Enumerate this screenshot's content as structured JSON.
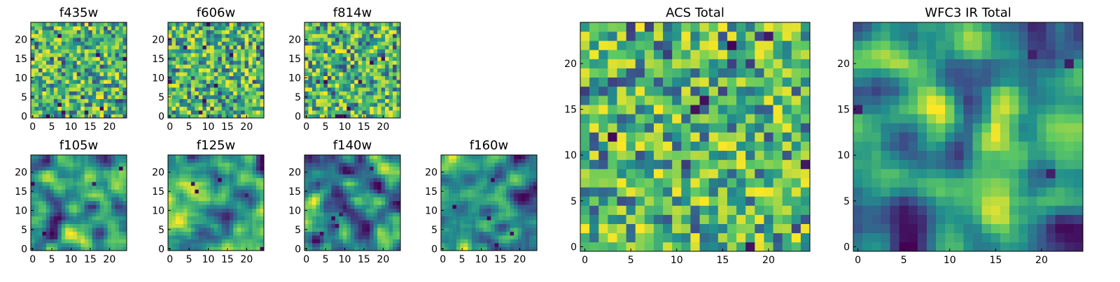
{
  "chart_data": [
    {
      "type": "heatmap",
      "title": "f435w",
      "pattern": "noise",
      "seed": 11,
      "grid": [
        25,
        25
      ],
      "x_ticks": [
        "0",
        "5",
        "10",
        "15",
        "20"
      ],
      "y_ticks": [
        "0",
        "5",
        "10",
        "15",
        "20"
      ],
      "xlim": [
        0,
        25
      ],
      "ylim": [
        0,
        25
      ]
    },
    {
      "type": "heatmap",
      "title": "f606w",
      "pattern": "noise",
      "seed": 23,
      "grid": [
        25,
        25
      ],
      "x_ticks": [
        "0",
        "5",
        "10",
        "15",
        "20"
      ],
      "y_ticks": [
        "0",
        "5",
        "10",
        "15",
        "20"
      ],
      "xlim": [
        0,
        25
      ],
      "ylim": [
        0,
        25
      ]
    },
    {
      "type": "heatmap",
      "title": "f814w",
      "pattern": "noise",
      "seed": 37,
      "grid": [
        25,
        25
      ],
      "x_ticks": [
        "0",
        "5",
        "10",
        "15",
        "20"
      ],
      "y_ticks": [
        "0",
        "5",
        "10",
        "15",
        "20"
      ],
      "xlim": [
        0,
        25
      ],
      "ylim": [
        0,
        25
      ]
    },
    {
      "type": "heatmap",
      "title": "f105w",
      "pattern": "smooth",
      "seed": 41,
      "grid": [
        25,
        25
      ],
      "x_ticks": [
        "0",
        "5",
        "10",
        "15",
        "20"
      ],
      "y_ticks": [
        "0",
        "5",
        "10",
        "15",
        "20"
      ],
      "xlim": [
        0,
        25
      ],
      "ylim": [
        0,
        25
      ]
    },
    {
      "type": "heatmap",
      "title": "f125w",
      "pattern": "smooth",
      "seed": 53,
      "grid": [
        25,
        25
      ],
      "x_ticks": [
        "0",
        "5",
        "10",
        "15",
        "20"
      ],
      "y_ticks": [
        "0",
        "5",
        "10",
        "15",
        "20"
      ],
      "xlim": [
        0,
        25
      ],
      "ylim": [
        0,
        25
      ]
    },
    {
      "type": "heatmap",
      "title": "f140w",
      "pattern": "smooth",
      "seed": 67,
      "grid": [
        25,
        25
      ],
      "x_ticks": [
        "0",
        "5",
        "10",
        "15",
        "20"
      ],
      "y_ticks": [
        "0",
        "5",
        "10",
        "15",
        "20"
      ],
      "xlim": [
        0,
        25
      ],
      "ylim": [
        0,
        25
      ]
    },
    {
      "type": "heatmap",
      "title": "f160w",
      "pattern": "smooth",
      "seed": 79,
      "grid": [
        25,
        25
      ],
      "x_ticks": [
        "0",
        "5",
        "10",
        "15",
        "20"
      ],
      "y_ticks": [
        "0",
        "5",
        "10",
        "15",
        "20"
      ],
      "xlim": [
        0,
        25
      ],
      "ylim": [
        0,
        25
      ]
    },
    {
      "type": "heatmap",
      "title": "ACS Total",
      "pattern": "noise",
      "seed": 83,
      "grid": [
        25,
        25
      ],
      "x_ticks": [
        "0",
        "5",
        "10",
        "15",
        "20"
      ],
      "y_ticks": [
        "0",
        "5",
        "10",
        "15",
        "20"
      ],
      "xlim": [
        0,
        25
      ],
      "ylim": [
        0,
        25
      ]
    },
    {
      "type": "heatmap",
      "title": "WFC3 IR Total",
      "pattern": "smooth",
      "seed": 97,
      "grid": [
        25,
        25
      ],
      "x_ticks": [
        "0",
        "5",
        "10",
        "15",
        "20"
      ],
      "y_ticks": [
        "0",
        "5",
        "10",
        "15",
        "20"
      ],
      "xlim": [
        0,
        25
      ],
      "ylim": [
        0,
        25
      ]
    }
  ],
  "colormap": [
    "#440154",
    "#3b528b",
    "#21908d",
    "#5dc963",
    "#fde725"
  ]
}
